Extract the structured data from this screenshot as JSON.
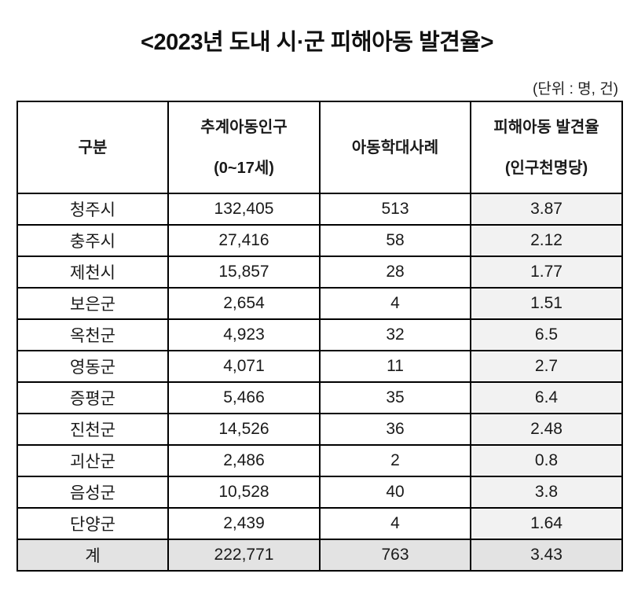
{
  "title": "<2023년 도내 시·군 피해아동 발견율>",
  "unit": "(단위 : 명, 건)",
  "table": {
    "headers": [
      {
        "line1": "구분",
        "line2": ""
      },
      {
        "line1": "추계아동인구",
        "line2": "(0~17세)"
      },
      {
        "line1": "아동학대사례",
        "line2": ""
      },
      {
        "line1": "피해아동 발견율",
        "line2": "(인구천명당)"
      }
    ],
    "rows": [
      [
        "청주시",
        "132,405",
        "513",
        "3.87"
      ],
      [
        "충주시",
        "27,416",
        "58",
        "2.12"
      ],
      [
        "제천시",
        "15,857",
        "28",
        "1.77"
      ],
      [
        "보은군",
        "2,654",
        "4",
        "1.51"
      ],
      [
        "옥천군",
        "4,923",
        "32",
        "6.5"
      ],
      [
        "영동군",
        "4,071",
        "11",
        "2.7"
      ],
      [
        "증평군",
        "5,466",
        "35",
        "6.4"
      ],
      [
        "진천군",
        "14,526",
        "36",
        "2.48"
      ],
      [
        "괴산군",
        "2,486",
        "2",
        "0.8"
      ],
      [
        "음성군",
        "10,528",
        "40",
        "3.8"
      ],
      [
        "단양군",
        "2,439",
        "4",
        "1.64"
      ]
    ],
    "total": [
      "계",
      "222,771",
      "763",
      "3.43"
    ]
  },
  "colors": {
    "rate_column_bg": "#f2f2f2",
    "total_row_bg": "#e3e3e3",
    "border": "#000000"
  }
}
